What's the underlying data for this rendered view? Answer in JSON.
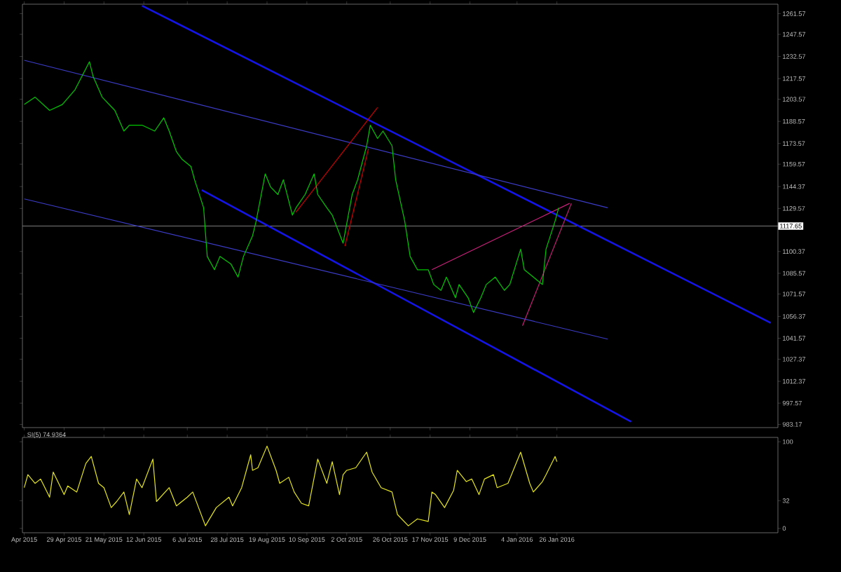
{
  "chart_data": [
    {
      "type": "line",
      "xlim": [
        "2015-04-06",
        "2016-05-27"
      ],
      "ylim": [
        981,
        1268
      ],
      "xticks": [
        {
          "value": "2015-04-07",
          "label": null
        },
        {
          "value": "2015-04-29",
          "label": null
        },
        {
          "value": "2015-05-21",
          "label": null
        },
        {
          "value": "2015-06-12",
          "label": null
        },
        {
          "value": "2015-07-06",
          "label": null
        },
        {
          "value": "2015-07-28",
          "label": null
        },
        {
          "value": "2015-08-19",
          "label": null
        },
        {
          "value": "2015-09-10",
          "label": null
        },
        {
          "value": "2015-10-02",
          "label": null
        },
        {
          "value": "2015-10-26",
          "label": null
        },
        {
          "value": "2015-11-17",
          "label": null
        },
        {
          "value": "2015-12-09",
          "label": null
        },
        {
          "value": "2016-01-04",
          "label": null
        },
        {
          "value": "2016-01-26",
          "label": null
        }
      ],
      "yticks": [
        1261.57,
        1247.57,
        1232.57,
        1217.57,
        1203.57,
        1188.57,
        1173.57,
        1159.57,
        1144.37,
        1129.57,
        1100.37,
        1085.57,
        1071.57,
        1056.37,
        1041.57,
        1027.37,
        1012.37,
        997.57,
        983.17
      ],
      "tick_labels": "y",
      "marker": "none",
      "line_style": "solid",
      "ref_lines": [
        {
          "axis": "y",
          "value": 1117.65,
          "label": "1117.65",
          "color": "#808080"
        }
      ],
      "series": [
        {
          "color": "#1414e6",
          "x": [
            "2015-06-11",
            "2016-05-23"
          ],
          "values": [
            1267,
            1052
          ]
        },
        {
          "color": "#1414e6",
          "x": [
            "2015-07-14",
            "2016-03-07"
          ],
          "values": [
            1142,
            985
          ]
        },
        {
          "color": "#3c3cc8",
          "x": [
            "2015-04-07",
            "2016-02-23"
          ],
          "values": [
            1230,
            1130
          ]
        },
        {
          "color": "#3c3cc8",
          "x": [
            "2015-04-07",
            "2016-02-23"
          ],
          "values": [
            1136,
            1041
          ]
        },
        {
          "color": "#c80000",
          "x": [
            "2015-09-04",
            "2015-10-19"
          ],
          "values": [
            1127,
            1198
          ]
        },
        {
          "color": "#c80000",
          "x": [
            "2015-10-01",
            "2015-10-14"
          ],
          "values": [
            1104,
            1170
          ]
        },
        {
          "color": "#c8207a",
          "x": [
            "2015-11-18",
            "2016-02-02"
          ],
          "values": [
            1088,
            1133
          ]
        },
        {
          "color": "#c8207a",
          "x": [
            "2016-01-07",
            "2016-02-03"
          ],
          "values": [
            1050,
            1133
          ]
        },
        {
          "color": "#00c800",
          "x": [
            "2015-04-07",
            "2015-04-13",
            "2015-04-21",
            "2015-04-28",
            "2015-05-05",
            "2015-05-13",
            "2015-05-15",
            "2015-05-20",
            "2015-05-27",
            "2015-06-01",
            "2015-06-04",
            "2015-06-11",
            "2015-06-18",
            "2015-06-23",
            "2015-06-26",
            "2015-06-30",
            "2015-07-03",
            "2015-07-08",
            "2015-07-10",
            "2015-07-15",
            "2015-07-17",
            "2015-07-21",
            "2015-07-24",
            "2015-07-30",
            "2015-08-03",
            "2015-08-06",
            "2015-08-11",
            "2015-08-13",
            "2015-08-18",
            "2015-08-21",
            "2015-08-25",
            "2015-08-28",
            "2015-09-02",
            "2015-09-04",
            "2015-09-09",
            "2015-09-14",
            "2015-09-16",
            "2015-09-21",
            "2015-09-24",
            "2015-09-30",
            "2015-10-05",
            "2015-10-08",
            "2015-10-13",
            "2015-10-15",
            "2015-10-19",
            "2015-10-22",
            "2015-10-27",
            "2015-10-29",
            "2015-11-03",
            "2015-11-06",
            "2015-11-10",
            "2015-11-16",
            "2015-11-19",
            "2015-11-23",
            "2015-11-26",
            "2015-12-01",
            "2015-12-03",
            "2015-12-08",
            "2015-12-11",
            "2015-12-15",
            "2015-12-18",
            "2015-12-23",
            "2015-12-28",
            "2015-12-31",
            "2016-01-06",
            "2016-01-08",
            "2016-01-13",
            "2016-01-18",
            "2016-01-20",
            "2016-01-25",
            "2016-01-27"
          ],
          "values": [
            1200,
            1205,
            1196,
            1200,
            1210,
            1229,
            1219,
            1205,
            1196,
            1182,
            1186,
            1186,
            1182,
            1191,
            1182,
            1168,
            1163,
            1158,
            1149,
            1130,
            1097,
            1088,
            1097,
            1092,
            1083,
            1097,
            1111,
            1121,
            1153,
            1144,
            1139,
            1149,
            1125,
            1130,
            1139,
            1153,
            1139,
            1130,
            1125,
            1106,
            1139,
            1149,
            1172,
            1186,
            1177,
            1182,
            1172,
            1149,
            1121,
            1097,
            1088,
            1088,
            1078,
            1074,
            1083,
            1069,
            1078,
            1069,
            1059,
            1069,
            1078,
            1083,
            1074,
            1078,
            1102,
            1088,
            1083,
            1078,
            1102,
            1121,
            1130
          ]
        }
      ]
    },
    {
      "type": "line",
      "title": "SI(5) 74.9364",
      "xlim": [
        "2015-04-06",
        "2016-05-27"
      ],
      "ylim": [
        -5,
        105
      ],
      "xticks": [
        {
          "value": "2015-04-07",
          "label": "Apr 2015"
        },
        {
          "value": "2015-04-29",
          "label": "29 Apr 2015"
        },
        {
          "value": "2015-05-21",
          "label": "21 May 2015"
        },
        {
          "value": "2015-06-12",
          "label": "12 Jun 2015"
        },
        {
          "value": "2015-07-06",
          "label": "6 Jul 2015"
        },
        {
          "value": "2015-07-28",
          "label": "28 Jul 2015"
        },
        {
          "value": "2015-08-19",
          "label": "19 Aug 2015"
        },
        {
          "value": "2015-09-10",
          "label": "10 Sep 2015"
        },
        {
          "value": "2015-10-02",
          "label": "2 Oct 2015"
        },
        {
          "value": "2015-10-26",
          "label": "26 Oct 2015"
        },
        {
          "value": "2015-11-17",
          "label": "17 Nov 2015"
        },
        {
          "value": "2015-12-09",
          "label": "9 Dec 2015"
        },
        {
          "value": "2016-01-04",
          "label": "4 Jan 2016"
        },
        {
          "value": "2016-01-26",
          "label": "26 Jan 2016"
        }
      ],
      "yticks": [
        100,
        32,
        0
      ],
      "marker": "none",
      "line_style": "solid",
      "series": [
        {
          "color": "#e6e61e",
          "x": [
            "2015-04-07",
            "2015-04-09",
            "2015-04-13",
            "2015-04-16",
            "2015-04-21",
            "2015-04-23",
            "2015-04-29",
            "2015-05-01",
            "2015-05-06",
            "2015-05-11",
            "2015-05-14",
            "2015-05-18",
            "2015-05-21",
            "2015-05-25",
            "2015-05-28",
            "2015-06-01",
            "2015-06-04",
            "2015-06-08",
            "2015-06-11",
            "2015-06-17",
            "2015-06-19",
            "2015-06-26",
            "2015-06-30",
            "2015-07-06",
            "2015-07-09",
            "2015-07-16",
            "2015-07-22",
            "2015-07-29",
            "2015-07-31",
            "2015-08-05",
            "2015-08-10",
            "2015-08-11",
            "2015-08-14",
            "2015-08-19",
            "2015-08-24",
            "2015-08-26",
            "2015-08-31",
            "2015-09-03",
            "2015-09-07",
            "2015-09-11",
            "2015-09-16",
            "2015-09-21",
            "2015-09-24",
            "2015-09-28",
            "2015-09-30",
            "2015-10-02",
            "2015-10-07",
            "2015-10-13",
            "2015-10-16",
            "2015-10-21",
            "2015-10-27",
            "2015-10-30",
            "2015-11-05",
            "2015-11-10",
            "2015-11-16",
            "2015-11-18",
            "2015-11-20",
            "2015-11-25",
            "2015-11-30",
            "2015-12-02",
            "2015-12-07",
            "2015-12-10",
            "2015-12-14",
            "2015-12-17",
            "2015-12-22",
            "2015-12-24",
            "2015-12-30",
            "2016-01-06",
            "2016-01-11",
            "2016-01-13",
            "2016-01-18",
            "2016-01-20",
            "2016-01-25",
            "2016-01-26"
          ],
          "values": [
            47,
            62,
            52,
            57,
            36,
            65,
            39,
            49,
            42,
            75,
            83,
            52,
            47,
            24,
            31,
            42,
            16,
            57,
            47,
            80,
            31,
            47,
            26,
            36,
            42,
            3,
            24,
            36,
            26,
            47,
            85,
            67,
            70,
            95,
            67,
            52,
            59,
            42,
            29,
            26,
            80,
            52,
            77,
            39,
            62,
            67,
            70,
            88,
            65,
            47,
            42,
            16,
            3,
            11,
            8,
            42,
            39,
            24,
            44,
            67,
            54,
            57,
            39,
            57,
            62,
            47,
            52,
            88,
            52,
            42,
            54,
            62,
            83,
            77
          ]
        }
      ]
    }
  ]
}
